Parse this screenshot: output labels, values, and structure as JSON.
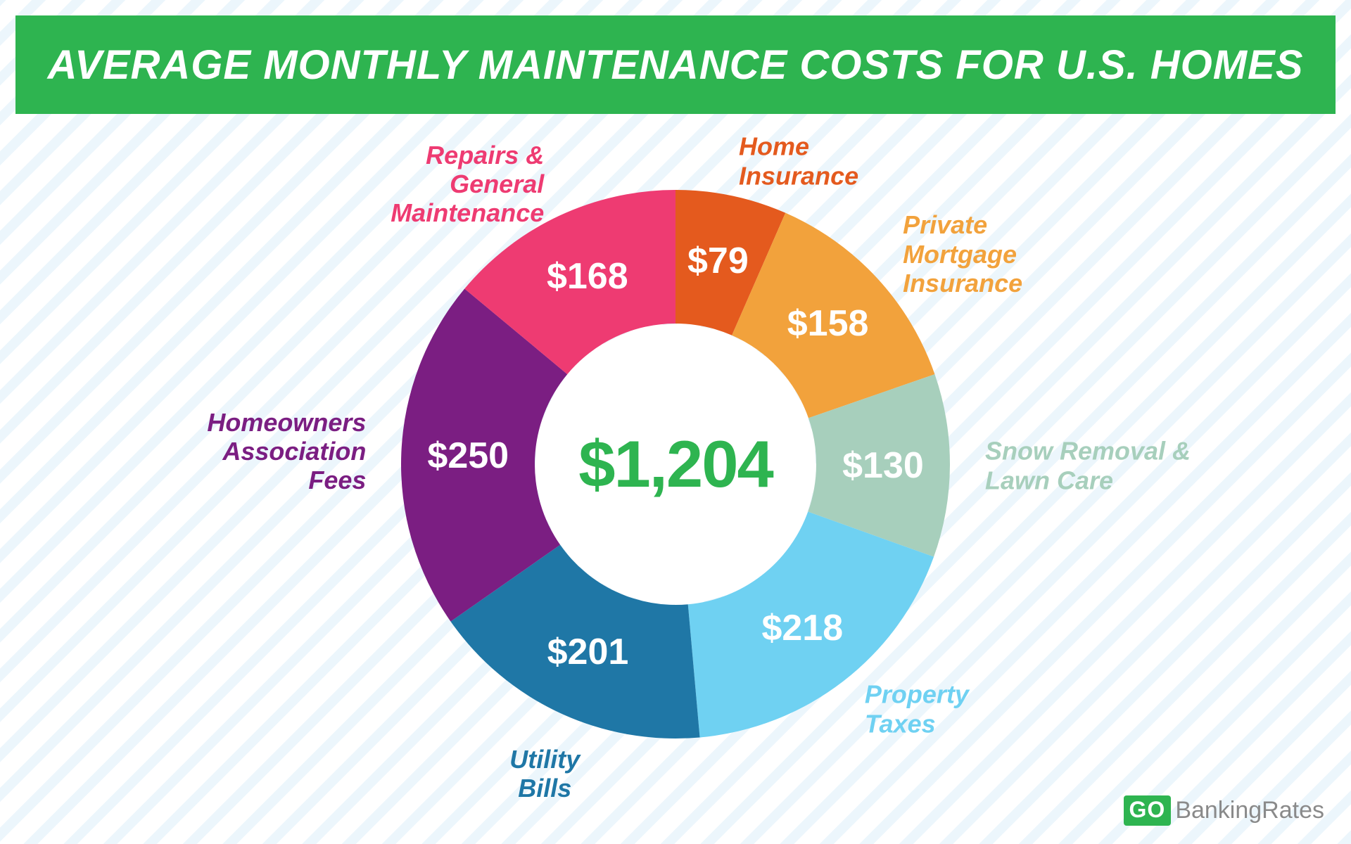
{
  "header": {
    "title": "AVERAGE MONTHLY MAINTENANCE COSTS FOR U.S. HOMES",
    "bg_color": "#2eb450",
    "text_color": "#ffffff",
    "title_fontsize": 58
  },
  "background": {
    "page_color": "#ffffff",
    "stripe_color": "rgba(100,180,230,0.12)"
  },
  "chart": {
    "type": "donut",
    "center_value": "$1,204",
    "center_color": "#2eb450",
    "center_fontsize": 94,
    "outer_radius": 390,
    "inner_radius": 200,
    "value_fontsize": 52,
    "value_color": "#ffffff",
    "label_fontsize": 36,
    "start_angle_deg": 0,
    "segments": [
      {
        "label": "Home\nInsurance",
        "value": 79,
        "display": "$79",
        "color": "#e45a1e",
        "label_align": "left"
      },
      {
        "label": "Private\nMortgage\nInsurance",
        "value": 158,
        "display": "$158",
        "color": "#f2a23c",
        "label_align": "left"
      },
      {
        "label": "Snow Removal &\nLawn Care",
        "value": 130,
        "display": "$130",
        "color": "#a7cfbc",
        "label_align": "left"
      },
      {
        "label": "Property\nTaxes",
        "value": 218,
        "display": "$218",
        "color": "#6fd1f2",
        "label_align": "left"
      },
      {
        "label": "Utility\nBills",
        "value": 201,
        "display": "$201",
        "color": "#1f77a6",
        "label_align": "center"
      },
      {
        "label": "Homeowners\nAssociation\nFees",
        "value": 250,
        "display": "$250",
        "color": "#7b1e82",
        "label_align": "right"
      },
      {
        "label": "Repairs &\nGeneral\nMaintenance",
        "value": 168,
        "display": "$168",
        "color": "#ee3b72",
        "label_align": "right"
      }
    ]
  },
  "logo": {
    "badge_text": "GO",
    "rest_text": "BankingRates",
    "badge_bg": "#2eb450",
    "badge_color": "#ffffff",
    "rest_color": "#8a8a8a"
  }
}
